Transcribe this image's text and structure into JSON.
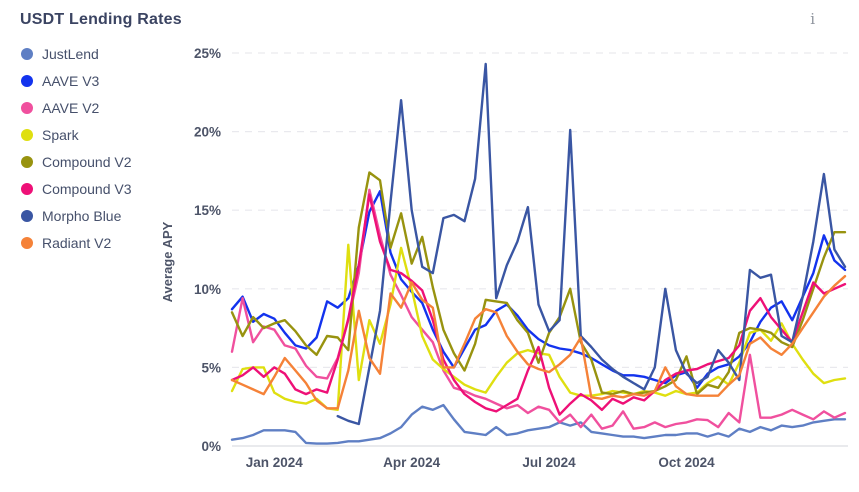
{
  "header": {
    "title": "USDT Lending Rates",
    "info_icon": "i"
  },
  "chart_data": {
    "type": "line",
    "title": "USDT Lending Rates",
    "xlabel": "",
    "ylabel": "Average APY",
    "ylim": [
      0,
      25
    ],
    "grid": "horizontal-dashed",
    "legend_position": "top-left",
    "x_unit": "week-index",
    "n_points": 59,
    "y_ticks": [
      {
        "value": 0,
        "label": "0%"
      },
      {
        "value": 5,
        "label": "5%"
      },
      {
        "value": 10,
        "label": "10%"
      },
      {
        "value": 15,
        "label": "15%"
      },
      {
        "value": 20,
        "label": "20%"
      },
      {
        "value": 25,
        "label": "25%"
      }
    ],
    "x_ticks": [
      {
        "index": 4,
        "label": "Jan 2024"
      },
      {
        "index": 17,
        "label": "Apr 2024"
      },
      {
        "index": 30,
        "label": "Jul 2024"
      },
      {
        "index": 43,
        "label": "Oct 2024"
      }
    ],
    "series": [
      {
        "name": "JustLend",
        "color": "#5f7fc4",
        "values": [
          0.4,
          0.5,
          0.7,
          1.0,
          1.0,
          1.0,
          0.9,
          0.2,
          0.15,
          0.15,
          0.2,
          0.3,
          0.3,
          0.4,
          0.5,
          0.8,
          1.2,
          2.0,
          2.5,
          2.3,
          2.6,
          1.7,
          0.9,
          0.8,
          0.7,
          1.2,
          0.7,
          0.8,
          1.0,
          1.1,
          1.2,
          1.5,
          1.3,
          1.5,
          0.9,
          0.8,
          0.7,
          0.6,
          0.6,
          0.5,
          0.6,
          0.7,
          0.7,
          0.8,
          0.8,
          0.6,
          0.8,
          0.6,
          1.1,
          0.9,
          1.2,
          1.0,
          1.3,
          1.2,
          1.3,
          1.5,
          1.6,
          1.7,
          1.7
        ]
      },
      {
        "name": "AAVE V3",
        "color": "#1333ee",
        "values": [
          8.7,
          9.5,
          7.9,
          8.4,
          8.1,
          7.2,
          6.4,
          6.2,
          6.9,
          9.2,
          8.8,
          9.4,
          11.5,
          14.9,
          16.2,
          12.3,
          10.6,
          9.8,
          9.1,
          7.4,
          6.0,
          5.0,
          6.2,
          7.4,
          7.7,
          8.6,
          9.0,
          8.3,
          7.4,
          6.8,
          6.4,
          6.2,
          6.1,
          5.9,
          5.6,
          5.2,
          4.8,
          4.5,
          4.5,
          4.4,
          4.2,
          4.0,
          4.5,
          4.7,
          3.7,
          4.6,
          5.0,
          5.2,
          5.7,
          6.6,
          7.9,
          8.8,
          9.2,
          8.0,
          9.5,
          11.0,
          13.4,
          11.8,
          11.2
        ]
      },
      {
        "name": "AAVE V2",
        "color": "#f0509e",
        "values": [
          6.0,
          9.4,
          6.6,
          7.6,
          7.4,
          6.4,
          6.2,
          5.1,
          4.4,
          4.3,
          5.6,
          8.0,
          11.0,
          16.3,
          13.4,
          10.9,
          9.6,
          8.2,
          7.4,
          6.6,
          4.8,
          3.7,
          3.5,
          3.2,
          3.0,
          2.7,
          2.4,
          2.6,
          2.1,
          2.5,
          2.3,
          1.5,
          2.0,
          1.2,
          2.0,
          1.1,
          1.3,
          2.2,
          1.1,
          1.2,
          1.5,
          1.2,
          1.4,
          1.5,
          1.7,
          1.65,
          1.2,
          2.1,
          1.5,
          5.8,
          1.8,
          1.8,
          2.0,
          2.3,
          2.0,
          1.7,
          2.2,
          1.8,
          2.1
        ]
      },
      {
        "name": "Spark",
        "color": "#dfdf10",
        "values": [
          3.5,
          4.9,
          5.0,
          5.0,
          3.4,
          3.0,
          2.8,
          2.7,
          3.0,
          2.4,
          2.3,
          12.8,
          4.2,
          8.0,
          6.5,
          9.0,
          12.6,
          10.0,
          7.0,
          5.5,
          4.9,
          4.4,
          3.9,
          3.6,
          3.4,
          4.4,
          5.3,
          5.9,
          6.1,
          5.9,
          5.8,
          4.4,
          3.4,
          3.2,
          3.2,
          3.3,
          3.5,
          3.4,
          3.3,
          3.5,
          3.4,
          3.2,
          3.5,
          3.3,
          3.4,
          4.0,
          4.4,
          3.9,
          5.3,
          7.2,
          7.4,
          6.7,
          7.8,
          6.5,
          5.5,
          4.6,
          4.0,
          4.2,
          4.3
        ]
      },
      {
        "name": "Compound V2",
        "color": "#98930f",
        "values": [
          8.5,
          7.0,
          8.2,
          7.5,
          7.8,
          8.0,
          7.3,
          6.4,
          5.8,
          7.0,
          6.9,
          6.1,
          13.9,
          17.4,
          16.9,
          12.6,
          14.8,
          11.6,
          13.3,
          10.1,
          7.4,
          5.9,
          4.8,
          6.5,
          9.3,
          9.2,
          9.1,
          8.0,
          7.2,
          5.3,
          7.2,
          8.2,
          10.0,
          6.6,
          5.5,
          3.4,
          3.3,
          3.5,
          3.3,
          3.4,
          3.5,
          3.8,
          4.2,
          5.7,
          3.3,
          3.9,
          3.7,
          4.7,
          7.2,
          7.5,
          7.4,
          7.2,
          6.6,
          6.3,
          8.0,
          10.0,
          12.0,
          13.6,
          13.6
        ]
      },
      {
        "name": "Compound V3",
        "color": "#ee1077",
        "values": [
          4.2,
          4.5,
          5.0,
          4.4,
          5.0,
          4.6,
          3.6,
          3.3,
          3.6,
          3.4,
          5.5,
          8.1,
          11.5,
          16.0,
          13.0,
          11.2,
          11.0,
          10.5,
          9.9,
          8.0,
          5.5,
          4.2,
          3.3,
          2.8,
          2.4,
          2.2,
          2.6,
          3.0,
          4.8,
          6.3,
          3.7,
          2.0,
          2.7,
          3.3,
          2.9,
          2.3,
          3.0,
          2.7,
          3.1,
          2.9,
          3.5,
          4.2,
          4.6,
          4.8,
          4.9,
          5.2,
          5.4,
          5.6,
          6.4,
          8.6,
          9.4,
          8.2,
          7.4,
          6.6,
          8.5,
          10.4,
          9.7,
          10.0,
          10.3
        ]
      },
      {
        "name": "Morpho Blue",
        "color": "#3a56a3",
        "values": [
          null,
          null,
          null,
          null,
          null,
          null,
          null,
          null,
          null,
          null,
          1.9,
          1.6,
          1.4,
          5.0,
          8.6,
          15.5,
          22.0,
          15.0,
          11.4,
          11.0,
          14.5,
          14.7,
          14.3,
          17.0,
          24.3,
          9.4,
          11.5,
          13.0,
          15.2,
          9.0,
          7.3,
          8.0,
          20.1,
          7.0,
          6.3,
          5.5,
          4.9,
          4.4,
          4.0,
          3.6,
          5.0,
          10.0,
          6.1,
          4.6,
          4.0,
          4.4,
          6.1,
          5.3,
          4.2,
          11.2,
          10.7,
          10.9,
          7.0,
          6.6,
          9.5,
          13.0,
          17.3,
          12.5,
          11.4
        ]
      },
      {
        "name": "Radiant V2",
        "color": "#f58238",
        "values": [
          4.2,
          3.9,
          3.6,
          3.3,
          4.4,
          5.6,
          4.8,
          4.0,
          2.9,
          2.4,
          2.4,
          4.8,
          8.6,
          5.6,
          4.6,
          9.7,
          8.8,
          10.4,
          9.3,
          8.8,
          5.0,
          5.0,
          6.5,
          8.1,
          8.7,
          8.5,
          7.0,
          6.0,
          5.2,
          4.9,
          4.7,
          5.2,
          5.8,
          6.9,
          3.1,
          3.0,
          3.2,
          3.1,
          3.3,
          3.2,
          3.5,
          5.0,
          3.8,
          3.3,
          3.2,
          3.2,
          3.2,
          3.9,
          4.5,
          6.5,
          6.9,
          6.2,
          5.8,
          6.5,
          7.5,
          8.5,
          9.5,
          10.2,
          10.8
        ]
      }
    ],
    "style": {
      "grid_color": "#e9e9ee",
      "baseline_color": "#dcdde2",
      "tick_color": "#4d5468",
      "title_color": "#3b4462",
      "stroke_width": 2.4
    }
  }
}
